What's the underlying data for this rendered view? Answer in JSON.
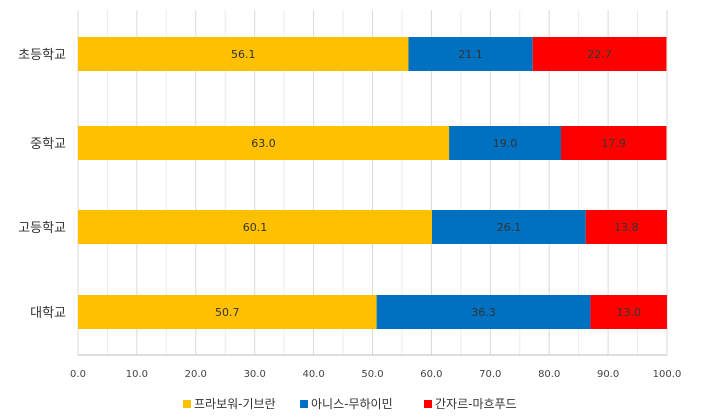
{
  "chart_data": {
    "type": "bar",
    "orientation": "horizontal",
    "stacked": true,
    "categories": [
      "초등학교",
      "중학교",
      "고등학교",
      "대학교"
    ],
    "series": [
      {
        "name": "프라보워-기브란",
        "color": "#FFC000",
        "values": [
          56.1,
          63.0,
          60.1,
          50.7
        ]
      },
      {
        "name": "아니스-무하이민",
        "color": "#0070C0",
        "values": [
          21.1,
          19.0,
          26.1,
          36.3
        ]
      },
      {
        "name": "간자르-마흐푸드",
        "color": "#FF0000",
        "values": [
          22.7,
          17.9,
          13.8,
          13.0
        ]
      }
    ],
    "xlim": [
      0,
      100
    ],
    "xticks": [
      "0.0",
      "10.0",
      "20.0",
      "30.0",
      "40.0",
      "50.0",
      "60.0",
      "70.0",
      "80.0",
      "90.0",
      "100.0"
    ],
    "grid": true,
    "legend_position": "bottom"
  }
}
